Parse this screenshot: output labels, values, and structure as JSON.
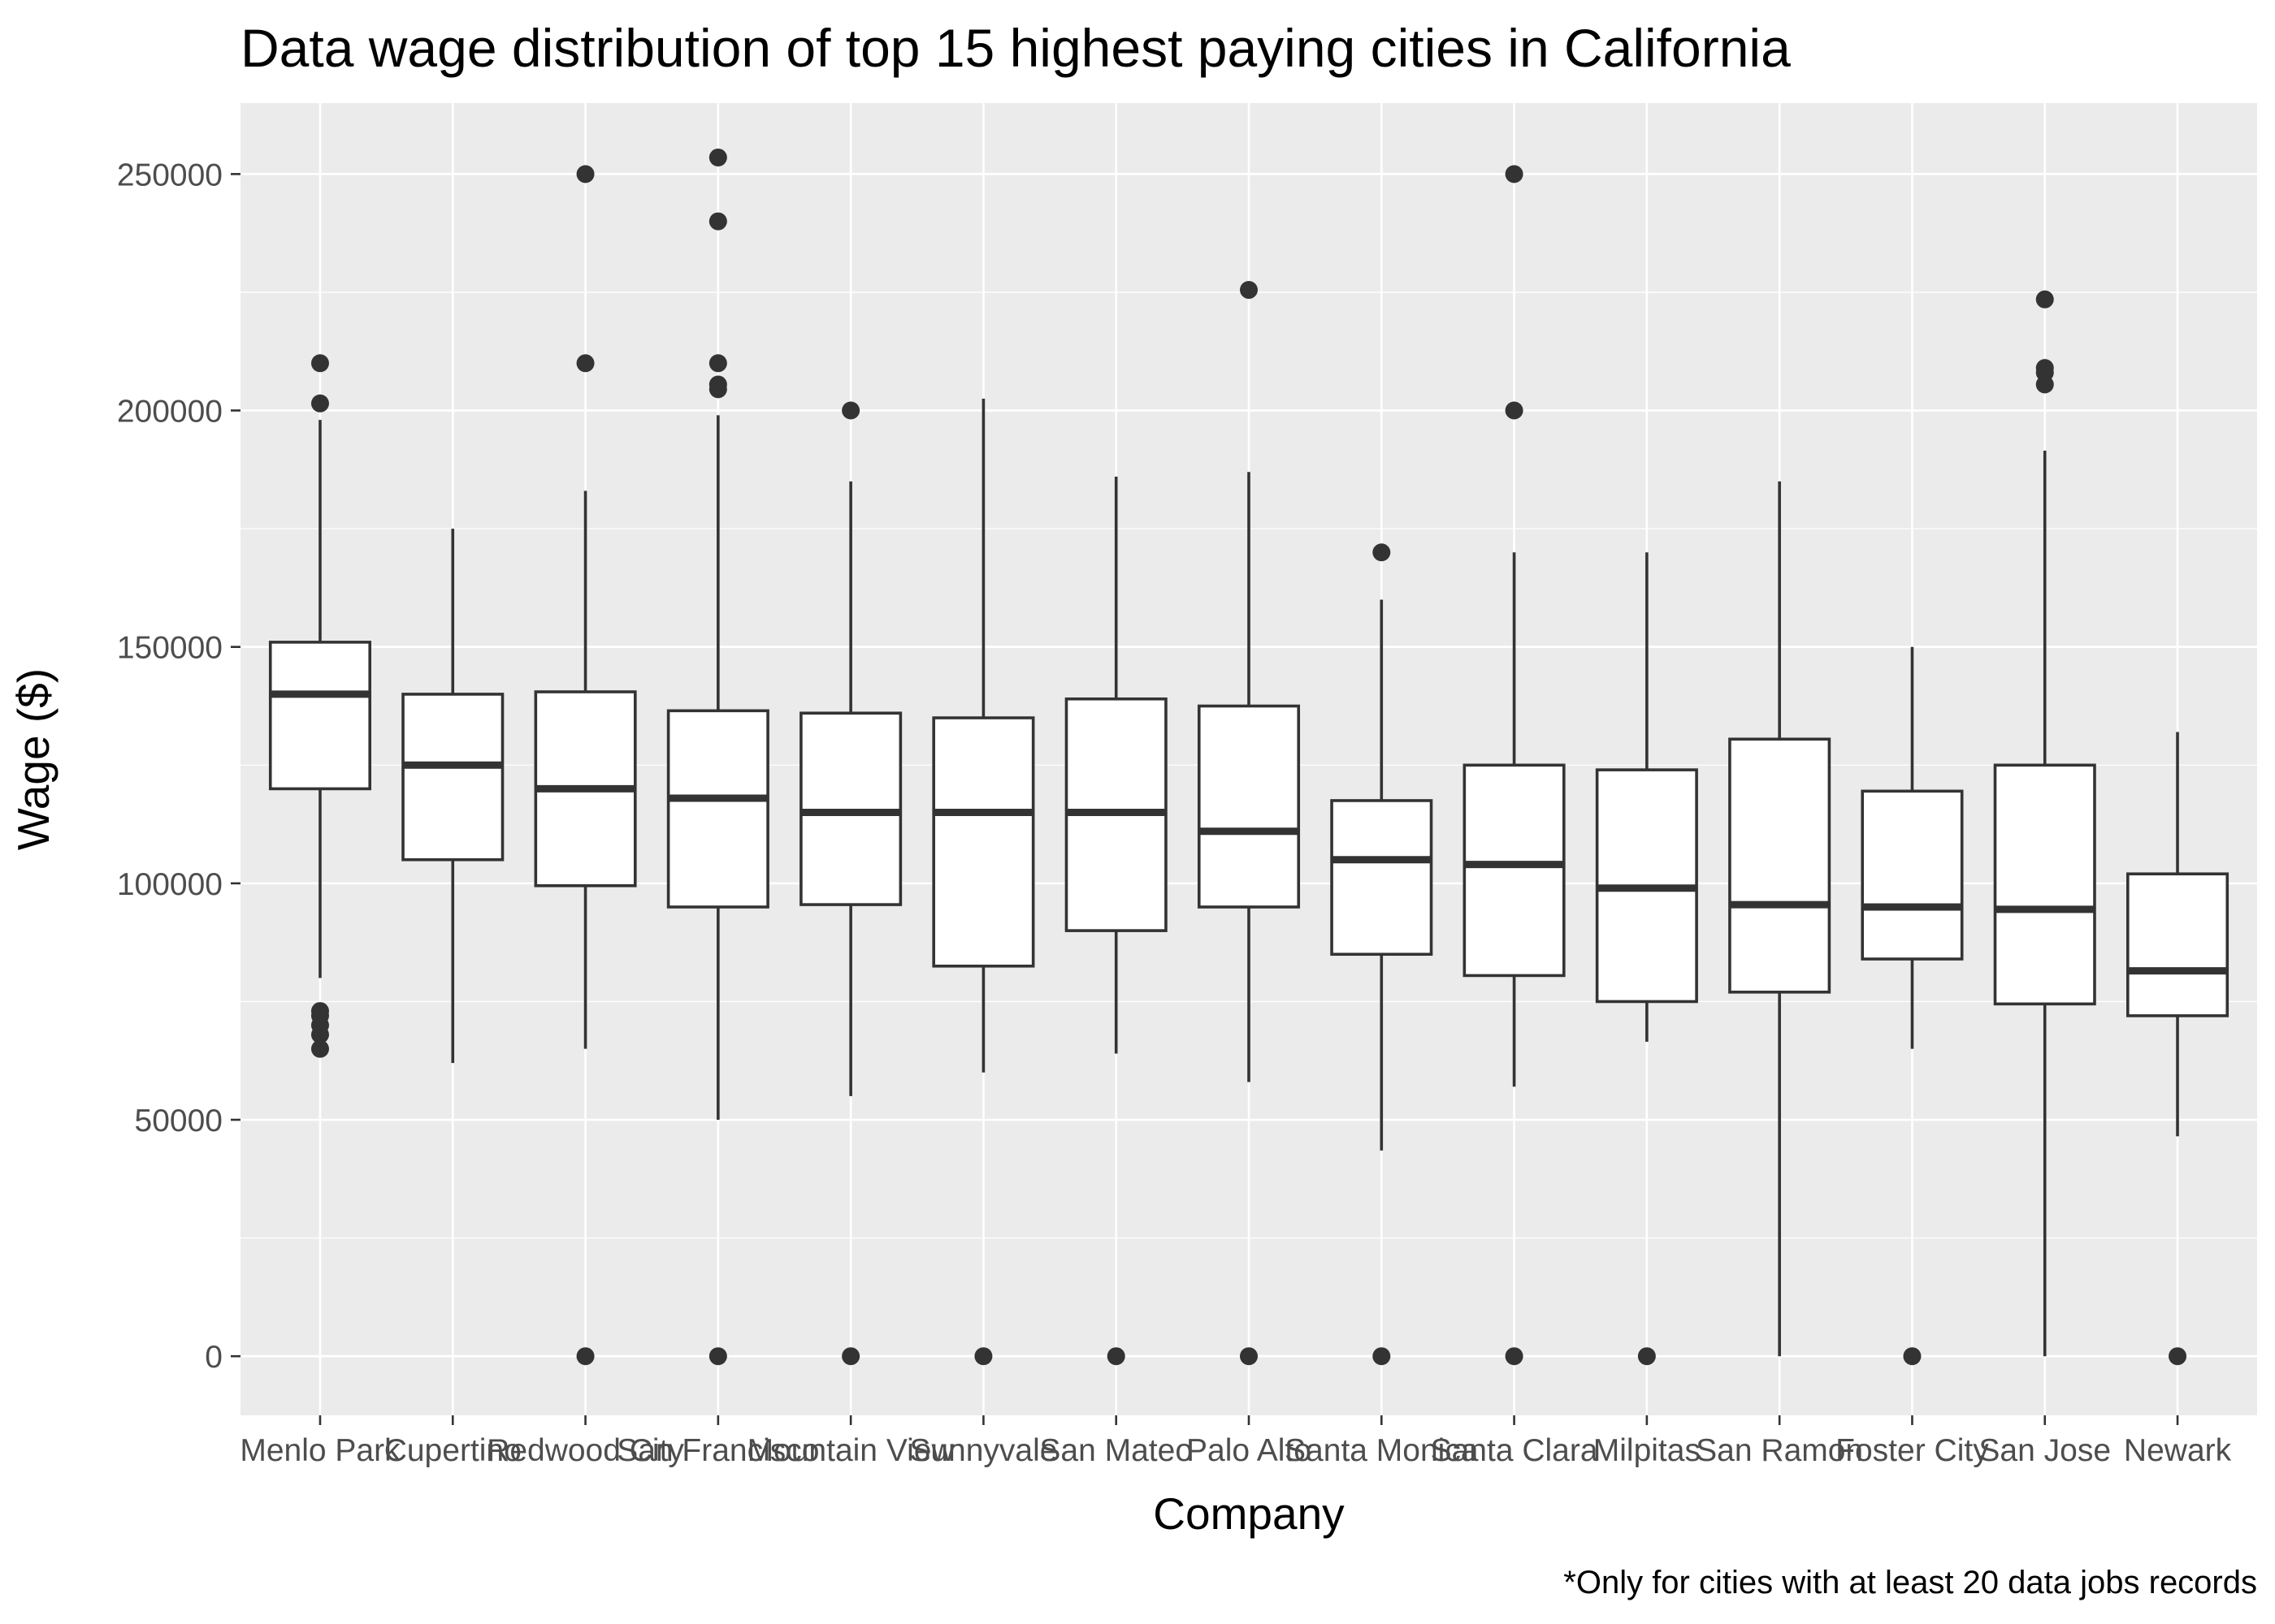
{
  "chart_data": {
    "type": "boxplot",
    "title": "Data wage distribution of top 15 highest paying cities in California",
    "xlabel": "Company",
    "ylabel": "Wage ($)",
    "caption": "*Only for cities with at least 20 data jobs records",
    "ylim": [
      -12500,
      265000
    ],
    "yticks": [
      0,
      50000,
      100000,
      150000,
      200000,
      250000
    ],
    "ytick_labels": [
      "0",
      "50000",
      "100000",
      "150000",
      "200000",
      "250000"
    ],
    "grid": true,
    "legend": "none",
    "categories": [
      "Menlo Park",
      "Cupertino",
      "Redwood City",
      "San Francisco",
      "Mountain View",
      "Sunnyvale",
      "San Mateo",
      "Palo Alto",
      "Santa Monica",
      "Santa Clara",
      "Milpitas",
      "San Ramon",
      "Foster City",
      "San Jose",
      "Newark"
    ],
    "boxes": [
      {
        "category": "Menlo Park",
        "whisker_low": 80000,
        "q1": 120000,
        "median": 140000,
        "q3": 151000,
        "whisker_high": 198000,
        "outliers": [
          210000,
          201500,
          73000,
          72000,
          70000,
          68000,
          65000
        ]
      },
      {
        "category": "Cupertino",
        "whisker_low": 62000,
        "q1": 105000,
        "median": 125000,
        "q3": 140000,
        "whisker_high": 175000,
        "outliers": []
      },
      {
        "category": "Redwood City",
        "whisker_low": 65000,
        "q1": 99500,
        "median": 120000,
        "q3": 140500,
        "whisker_high": 183000,
        "outliers": [
          250000,
          210000,
          0
        ]
      },
      {
        "category": "San Francisco",
        "whisker_low": 50000,
        "q1": 95000,
        "median": 118000,
        "q3": 136500,
        "whisker_high": 199000,
        "outliers": [
          253500,
          240000,
          210000,
          205500,
          204500,
          0
        ]
      },
      {
        "category": "Mountain View",
        "whisker_low": 55000,
        "q1": 95500,
        "median": 115000,
        "q3": 136000,
        "whisker_high": 185000,
        "outliers": [
          200000,
          0
        ]
      },
      {
        "category": "Sunnyvale",
        "whisker_low": 60000,
        "q1": 82500,
        "median": 115000,
        "q3": 135000,
        "whisker_high": 202500,
        "outliers": [
          0
        ]
      },
      {
        "category": "San Mateo",
        "whisker_low": 64000,
        "q1": 90000,
        "median": 115000,
        "q3": 139000,
        "whisker_high": 186000,
        "outliers": [
          0
        ]
      },
      {
        "category": "Palo Alto",
        "whisker_low": 58000,
        "q1": 95000,
        "median": 111000,
        "q3": 137500,
        "whisker_high": 187000,
        "outliers": [
          225500,
          0
        ]
      },
      {
        "category": "Santa Monica",
        "whisker_low": 43500,
        "q1": 85000,
        "median": 105000,
        "q3": 117500,
        "whisker_high": 160000,
        "outliers": [
          170000,
          0
        ]
      },
      {
        "category": "Santa Clara",
        "whisker_low": 57000,
        "q1": 80500,
        "median": 104000,
        "q3": 125000,
        "whisker_high": 170000,
        "outliers": [
          250000,
          200000,
          0
        ]
      },
      {
        "category": "Milpitas",
        "whisker_low": 66500,
        "q1": 75000,
        "median": 99000,
        "q3": 124000,
        "whisker_high": 170000,
        "outliers": [
          0
        ]
      },
      {
        "category": "San Ramon",
        "whisker_low": 0,
        "q1": 77000,
        "median": 95500,
        "q3": 130500,
        "whisker_high": 185000,
        "outliers": []
      },
      {
        "category": "Foster City",
        "whisker_low": 65000,
        "q1": 84000,
        "median": 95000,
        "q3": 119500,
        "whisker_high": 150000,
        "outliers": [
          0
        ]
      },
      {
        "category": "San Jose",
        "whisker_low": 0,
        "q1": 74500,
        "median": 94500,
        "q3": 125000,
        "whisker_high": 191500,
        "outliers": [
          223500,
          209000,
          208000,
          205500
        ]
      },
      {
        "category": "Newark",
        "whisker_low": 46500,
        "q1": 72000,
        "median": 81500,
        "q3": 102000,
        "whisker_high": 132000,
        "outliers": [
          0
        ]
      }
    ]
  }
}
